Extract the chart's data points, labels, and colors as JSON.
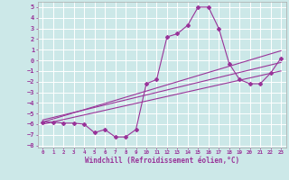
{
  "xlabel": "Windchill (Refroidissement éolien,°C)",
  "xlim": [
    -0.5,
    23.5
  ],
  "ylim": [
    -8.2,
    5.5
  ],
  "xticks": [
    0,
    1,
    2,
    3,
    4,
    5,
    6,
    7,
    8,
    9,
    10,
    11,
    12,
    13,
    14,
    15,
    16,
    17,
    18,
    19,
    20,
    21,
    22,
    23
  ],
  "yticks": [
    -8,
    -7,
    -6,
    -5,
    -4,
    -3,
    -2,
    -1,
    0,
    1,
    2,
    3,
    4,
    5
  ],
  "bg_color": "#cce8e8",
  "line_color": "#993399",
  "grid_color": "#ffffff",
  "main_data_x": [
    0,
    1,
    2,
    3,
    4,
    5,
    6,
    7,
    8,
    9,
    10,
    11,
    12,
    13,
    14,
    15,
    16,
    17,
    18,
    19,
    20,
    21,
    22,
    23
  ],
  "main_data_y": [
    -5.8,
    -5.8,
    -5.9,
    -5.9,
    -6.0,
    -6.8,
    -6.5,
    -7.2,
    -7.2,
    -6.5,
    -2.2,
    -1.8,
    2.2,
    2.5,
    3.3,
    5.0,
    5.0,
    3.0,
    -0.3,
    -1.8,
    -2.2,
    -2.2,
    -1.2,
    0.2
  ],
  "reg_lines": [
    {
      "x": [
        0,
        23
      ],
      "y": [
        -5.8,
        0.9
      ]
    },
    {
      "x": [
        0,
        23
      ],
      "y": [
        -5.6,
        -0.2
      ]
    },
    {
      "x": [
        0,
        23
      ],
      "y": [
        -6.0,
        -1.0
      ]
    }
  ]
}
